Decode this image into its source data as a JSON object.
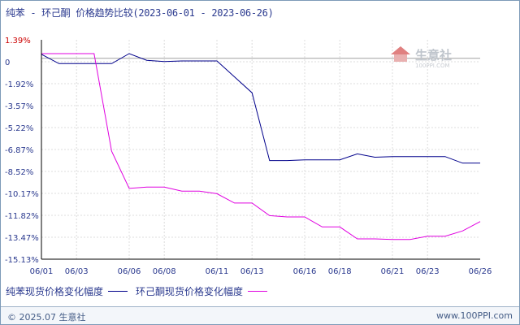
{
  "title": "纯苯 - 环己酮 价格趋势比较(2023-06-01 - 2023-06-26)",
  "watermark": {
    "name": "生意社",
    "url": "100PPI.COM"
  },
  "footer": {
    "copyright": "© 2025.07 生意社",
    "site": "www.100PPI.com"
  },
  "colors": {
    "series1": "#00008b",
    "series2": "#e000e0",
    "axis": "#000000",
    "grid": "#dcdcdc",
    "tick_label": "#2b3a8f",
    "top_label": "#cc0000"
  },
  "chart_data": {
    "type": "line",
    "x": [
      "06/01",
      "06/02",
      "06/03",
      "06/04",
      "06/05",
      "06/06",
      "06/07",
      "06/08",
      "06/09",
      "06/10",
      "06/11",
      "06/12",
      "06/13",
      "06/14",
      "06/15",
      "06/16",
      "06/17",
      "06/18",
      "06/19",
      "06/20",
      "06/21",
      "06/22",
      "06/23",
      "06/24",
      "06/25",
      "06/26"
    ],
    "x_tick_labels": [
      "06/01",
      "06/03",
      "06/06",
      "06/08",
      "06/11",
      "06/13",
      "06/16",
      "06/18",
      "06/21",
      "06/23",
      "06/26"
    ],
    "y_tick_labels": [
      "1.39%",
      "0",
      "-1.92%",
      "-3.57%",
      "-5.22%",
      "-6.87%",
      "-8.52%",
      "-10.17%",
      "-11.82%",
      "-13.47%",
      "-15.13%"
    ],
    "ylim": [
      -15.13,
      1.39
    ],
    "grid": true,
    "legend_position": "bottom-left",
    "series": [
      {
        "name": "纯苯现货价格变化幅度",
        "values": [
          0.3,
          -0.4,
          -0.4,
          -0.4,
          -0.4,
          0.35,
          -0.15,
          -0.25,
          -0.2,
          -0.2,
          -0.2,
          -1.4,
          -2.6,
          -7.7,
          -7.7,
          -7.65,
          -7.65,
          -7.65,
          -7.2,
          -7.45,
          -7.4,
          -7.4,
          -7.4,
          -7.4,
          -7.9,
          -7.9
        ]
      },
      {
        "name": "环己酮现货价格变化幅度",
        "values": [
          0.35,
          0.35,
          0.35,
          0.35,
          -7.0,
          -9.8,
          -9.7,
          -9.7,
          -10.0,
          -10.0,
          -10.2,
          -10.9,
          -10.9,
          -11.85,
          -11.95,
          -11.95,
          -12.7,
          -12.7,
          -13.6,
          -13.6,
          -13.65,
          -13.65,
          -13.4,
          -13.4,
          -13.0,
          -12.3
        ]
      }
    ]
  }
}
